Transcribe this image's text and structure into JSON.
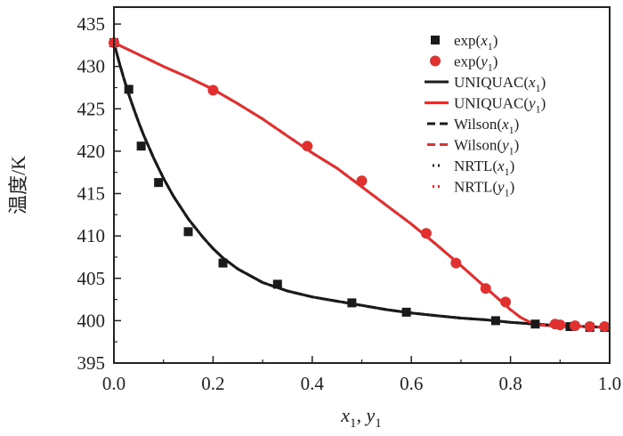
{
  "chart_data": {
    "type": "line",
    "title": "",
    "xlabel": "x₁, y₁",
    "ylabel": "温度/K",
    "xlim": [
      0.0,
      1.0
    ],
    "ylim": [
      395,
      437
    ],
    "x_ticks": [
      "0.0",
      "0.2",
      "0.4",
      "0.6",
      "0.8",
      "1.0"
    ],
    "y_ticks": [
      "395",
      "400",
      "405",
      "410",
      "415",
      "420",
      "425",
      "430",
      "435"
    ],
    "legend_position": "top-right",
    "colors": {
      "black": "#1a1a1a",
      "red": "#e03030"
    },
    "series": [
      {
        "name": "exp(x1)",
        "kind": "scatter",
        "marker": "square",
        "color": "#1a1a1a",
        "legend": {
          "main": "exp(",
          "var": "x",
          "sub": "1",
          "close": ")"
        },
        "x": [
          0.0,
          0.03,
          0.055,
          0.09,
          0.15,
          0.22,
          0.33,
          0.48,
          0.59,
          0.77,
          0.85,
          0.92,
          0.96,
          0.99
        ],
        "y": [
          432.8,
          427.3,
          420.6,
          416.3,
          410.5,
          406.8,
          404.3,
          402.1,
          401.0,
          400.0,
          399.6,
          399.3,
          399.2,
          399.2
        ]
      },
      {
        "name": "exp(y1)",
        "kind": "scatter",
        "marker": "circle",
        "color": "#e03030",
        "legend": {
          "main": "exp(",
          "var": "y",
          "sub": "1",
          "close": ")"
        },
        "x": [
          0.0,
          0.2,
          0.39,
          0.5,
          0.63,
          0.69,
          0.75,
          0.79,
          0.89,
          0.9,
          0.93,
          0.96,
          0.99
        ],
        "y": [
          432.8,
          427.2,
          420.6,
          416.5,
          410.3,
          406.8,
          403.8,
          402.2,
          399.6,
          399.5,
          399.4,
          399.3,
          399.3
        ]
      },
      {
        "name": "UNIQUAC(x1)",
        "kind": "line",
        "dash": "solid",
        "color": "#1a1a1a",
        "legend": {
          "main": "UNIQUAC(",
          "var": "x",
          "sub": "1",
          "close": ")"
        },
        "x": [
          0.0,
          0.01,
          0.02,
          0.03,
          0.04,
          0.05,
          0.06,
          0.08,
          0.1,
          0.12,
          0.15,
          0.18,
          0.2,
          0.22,
          0.25,
          0.3,
          0.35,
          0.4,
          0.45,
          0.5,
          0.55,
          0.6,
          0.65,
          0.7,
          0.75,
          0.8,
          0.85,
          0.9,
          0.95,
          1.0
        ],
        "y": [
          432.8,
          430.6,
          428.6,
          426.7,
          425.0,
          423.4,
          421.9,
          419.2,
          416.8,
          414.7,
          412.0,
          409.8,
          408.5,
          407.4,
          406.1,
          404.5,
          403.5,
          402.8,
          402.3,
          401.8,
          401.3,
          400.9,
          400.6,
          400.3,
          400.1,
          399.8,
          399.6,
          399.4,
          399.3,
          399.2
        ]
      },
      {
        "name": "UNIQUAC(y1)",
        "kind": "line",
        "dash": "solid",
        "color": "#e03030",
        "legend": {
          "main": "UNIQUAC(",
          "var": "y",
          "sub": "1",
          "close": ")"
        },
        "x": [
          0.0,
          0.05,
          0.1,
          0.15,
          0.2,
          0.25,
          0.3,
          0.35,
          0.4,
          0.45,
          0.5,
          0.55,
          0.6,
          0.65,
          0.7,
          0.75,
          0.8,
          0.82,
          0.84,
          0.86,
          0.88,
          0.9,
          0.95,
          1.0
        ],
        "y": [
          432.8,
          431.4,
          430.0,
          428.7,
          427.3,
          425.6,
          423.8,
          421.8,
          419.8,
          418.0,
          415.8,
          413.6,
          411.4,
          409.0,
          406.5,
          403.9,
          401.3,
          400.4,
          399.8,
          399.5,
          399.4,
          399.3,
          399.3,
          399.2
        ]
      },
      {
        "name": "Wilson(x1)",
        "kind": "line",
        "dash": "dash",
        "color": "#1a1a1a",
        "legend": {
          "main": "Wilson(",
          "var": "x",
          "sub": "1",
          "close": ")"
        },
        "same_as": "UNIQUAC(x1)"
      },
      {
        "name": "Wilson(y1)",
        "kind": "line",
        "dash": "dash",
        "color": "#e03030",
        "legend": {
          "main": "Wilson(",
          "var": "y",
          "sub": "1",
          "close": ")"
        },
        "same_as": "UNIQUAC(y1)"
      },
      {
        "name": "NRTL(x1)",
        "kind": "line",
        "dash": "dot",
        "color": "#1a1a1a",
        "legend": {
          "main": "NRTL(",
          "var": "x",
          "sub": "1",
          "close": ")"
        },
        "same_as": "UNIQUAC(x1)"
      },
      {
        "name": "NRTL(y1)",
        "kind": "line",
        "dash": "dot",
        "color": "#e03030",
        "legend": {
          "main": "NRTL(",
          "var": "y",
          "sub": "1",
          "close": ")"
        },
        "same_as": "UNIQUAC(y1)"
      }
    ]
  }
}
